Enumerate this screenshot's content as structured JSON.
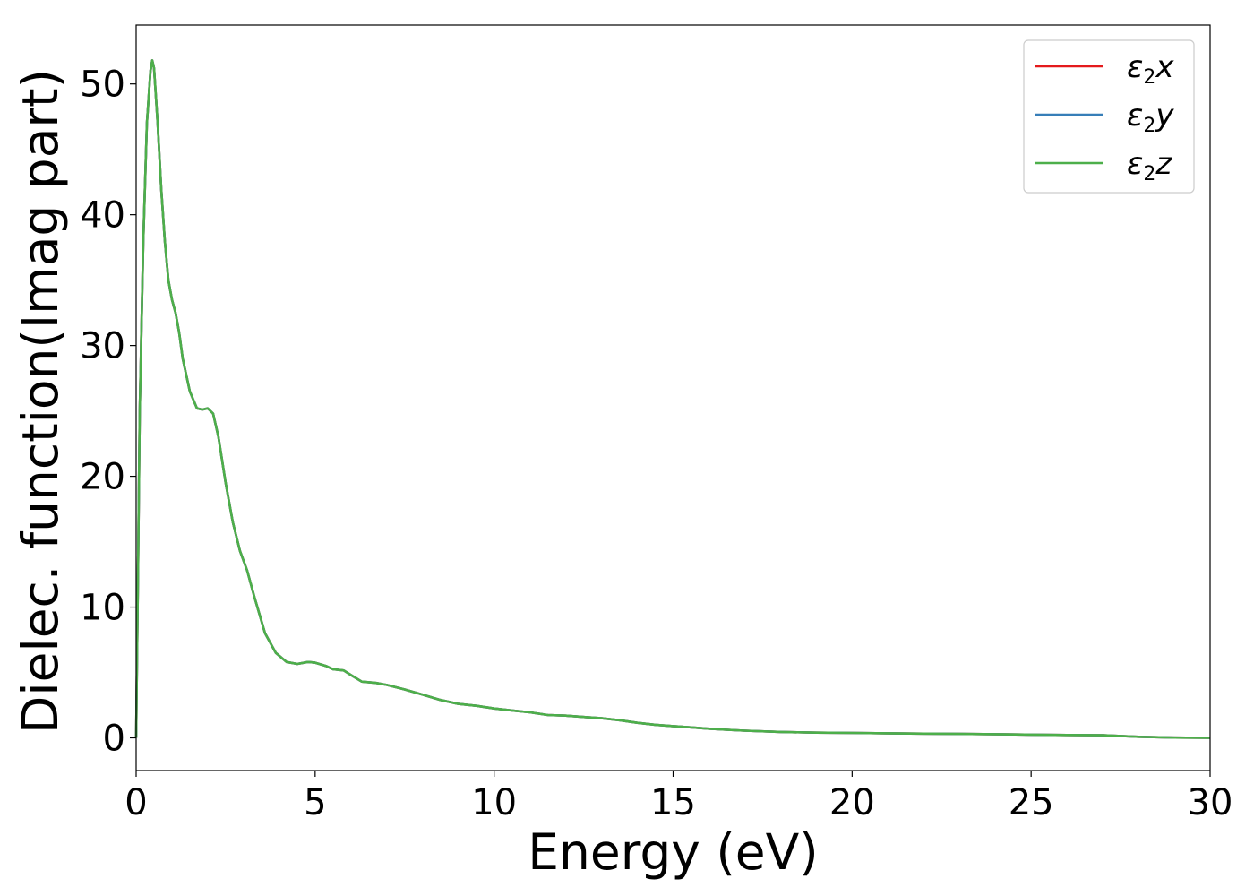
{
  "chart_data": {
    "type": "line",
    "title": "",
    "xlabel": "Energy (eV)",
    "ylabel": "Dielec. function(Imag part)",
    "xlim": [
      0,
      30
    ],
    "ylim": [
      -2.5,
      54.5
    ],
    "xticks": [
      0,
      5,
      10,
      15,
      20,
      25,
      30
    ],
    "xtick_labels": [
      "0",
      "5",
      "10",
      "15",
      "20",
      "25",
      "30"
    ],
    "yticks": [
      0,
      10,
      20,
      30,
      40,
      50
    ],
    "ytick_labels": [
      "0",
      "10",
      "20",
      "30",
      "40",
      "50"
    ],
    "grid": false,
    "legend_position": "top-right",
    "x": [
      0,
      0.05,
      0.1,
      0.2,
      0.3,
      0.4,
      0.45,
      0.5,
      0.6,
      0.7,
      0.8,
      0.9,
      1.0,
      1.1,
      1.2,
      1.3,
      1.5,
      1.7,
      1.85,
      2.0,
      2.15,
      2.3,
      2.5,
      2.7,
      2.9,
      3.1,
      3.3,
      3.6,
      3.9,
      4.2,
      4.5,
      4.8,
      5.0,
      5.3,
      5.5,
      5.8,
      6.0,
      6.3,
      6.7,
      7.0,
      7.5,
      8.0,
      8.5,
      9.0,
      9.5,
      10.0,
      10.5,
      11.0,
      11.5,
      12.0,
      12.5,
      13.0,
      13.5,
      14.0,
      14.5,
      15.0,
      15.5,
      16.0,
      16.5,
      17.0,
      18.0,
      19.0,
      20.0,
      21.0,
      22.0,
      23.0,
      24.0,
      25.0,
      26.0,
      27.0,
      28.0,
      29.0,
      30.0
    ],
    "series": [
      {
        "name": "ε2x",
        "label_base": "ε",
        "label_sub": "2",
        "label_tail": "x",
        "color": "#e41a1c",
        "y": [
          0,
          12,
          25,
          38,
          47,
          51,
          51.8,
          51.2,
          47,
          42,
          38,
          35,
          33.5,
          32.5,
          31,
          29,
          26.5,
          25.2,
          25.1,
          25.2,
          24.8,
          23,
          19.5,
          16.5,
          14.3,
          12.8,
          10.8,
          8.0,
          6.5,
          5.8,
          5.65,
          5.8,
          5.75,
          5.5,
          5.25,
          5.15,
          4.8,
          4.3,
          4.2,
          4.05,
          3.7,
          3.3,
          2.9,
          2.6,
          2.45,
          2.25,
          2.1,
          1.95,
          1.75,
          1.7,
          1.6,
          1.5,
          1.35,
          1.15,
          1.0,
          0.9,
          0.8,
          0.7,
          0.62,
          0.55,
          0.45,
          0.4,
          0.38,
          0.35,
          0.32,
          0.3,
          0.28,
          0.25,
          0.22,
          0.2,
          0.08,
          0.02,
          0.0
        ]
      },
      {
        "name": "ε2y",
        "label_base": "ε",
        "label_sub": "2",
        "label_tail": "y",
        "color": "#377eb8",
        "y": [
          0,
          12,
          25,
          38,
          47,
          51,
          51.8,
          51.2,
          47,
          42,
          38,
          35,
          33.5,
          32.5,
          31,
          29,
          26.5,
          25.2,
          25.1,
          25.2,
          24.8,
          23,
          19.5,
          16.5,
          14.3,
          12.8,
          10.8,
          8.0,
          6.5,
          5.8,
          5.65,
          5.8,
          5.75,
          5.5,
          5.25,
          5.15,
          4.8,
          4.3,
          4.2,
          4.05,
          3.7,
          3.3,
          2.9,
          2.6,
          2.45,
          2.25,
          2.1,
          1.95,
          1.75,
          1.7,
          1.6,
          1.5,
          1.35,
          1.15,
          1.0,
          0.9,
          0.8,
          0.7,
          0.62,
          0.55,
          0.45,
          0.4,
          0.38,
          0.35,
          0.32,
          0.3,
          0.28,
          0.25,
          0.22,
          0.2,
          0.08,
          0.02,
          0.0
        ]
      },
      {
        "name": "ε2z",
        "label_base": "ε",
        "label_sub": "2",
        "label_tail": "z",
        "color": "#4daf4a",
        "y": [
          0,
          12,
          25,
          38,
          47,
          51,
          51.8,
          51.2,
          47,
          42,
          38,
          35,
          33.5,
          32.5,
          31,
          29,
          26.5,
          25.2,
          25.1,
          25.2,
          24.8,
          23,
          19.5,
          16.5,
          14.3,
          12.8,
          10.8,
          8.0,
          6.5,
          5.8,
          5.65,
          5.8,
          5.75,
          5.5,
          5.25,
          5.15,
          4.8,
          4.3,
          4.2,
          4.05,
          3.7,
          3.3,
          2.9,
          2.6,
          2.45,
          2.25,
          2.1,
          1.95,
          1.75,
          1.7,
          1.6,
          1.5,
          1.35,
          1.15,
          1.0,
          0.9,
          0.8,
          0.7,
          0.62,
          0.55,
          0.45,
          0.4,
          0.38,
          0.35,
          0.32,
          0.3,
          0.28,
          0.25,
          0.22,
          0.2,
          0.08,
          0.02,
          0.0
        ]
      }
    ]
  }
}
